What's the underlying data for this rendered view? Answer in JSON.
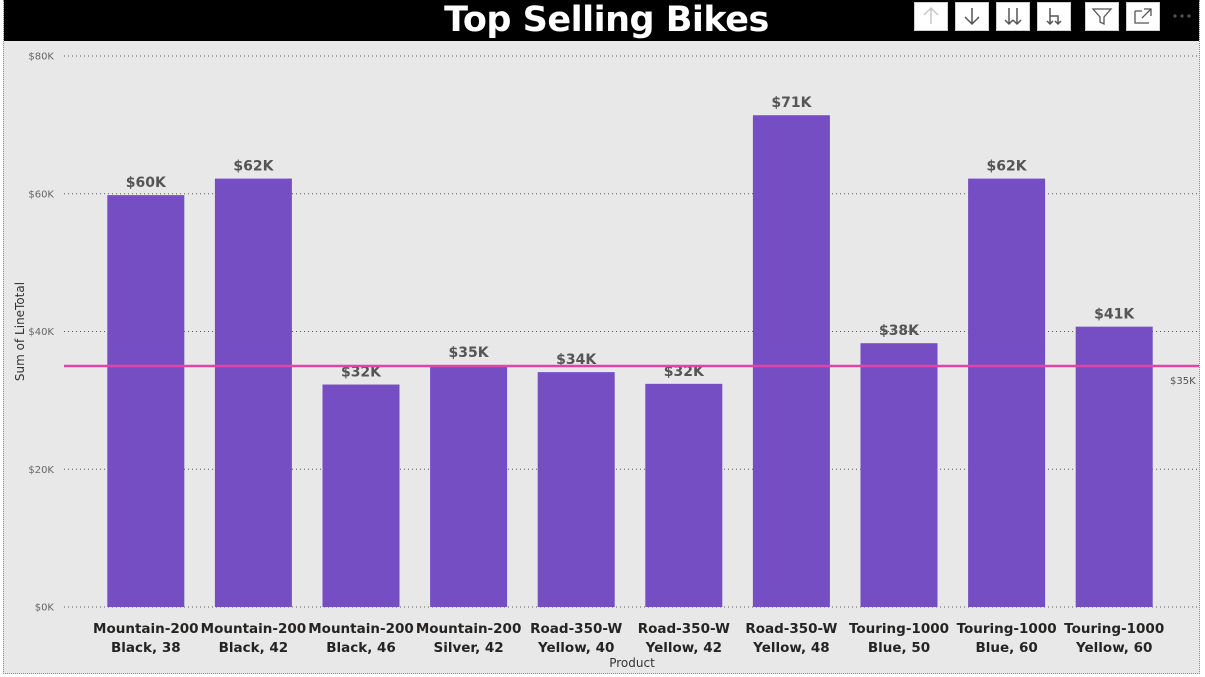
{
  "toolbar": {
    "icons": [
      "sort-ascending-icon",
      "drill-down-icon",
      "expand-all-icon",
      "expand-hierarchy-icon",
      "filter-icon",
      "focus-mode-icon",
      "more-options-icon"
    ]
  },
  "colors": {
    "bar": "#744ec2",
    "reference_line": "#e044a7",
    "background": "#e8e8e8",
    "title_bar": "#000000"
  },
  "chart_data": {
    "type": "bar",
    "title": "Top Selling Bikes",
    "xlabel": "Product",
    "ylabel": "Sum of LineTotal",
    "categories": [
      [
        "Mountain-200",
        "Black, 38"
      ],
      [
        "Mountain-200",
        "Black, 42"
      ],
      [
        "Mountain-200",
        "Black, 46"
      ],
      [
        "Mountain-200",
        "Silver, 42"
      ],
      [
        "Road-350-W",
        "Yellow, 40"
      ],
      [
        "Road-350-W",
        "Yellow, 42"
      ],
      [
        "Road-350-W",
        "Yellow, 48"
      ],
      [
        "Touring-1000",
        "Blue, 50"
      ],
      [
        "Touring-1000",
        "Blue, 60"
      ],
      [
        "Touring-1000",
        "Yellow, 60"
      ]
    ],
    "values": [
      59800,
      62200,
      32300,
      35100,
      34100,
      32400,
      71400,
      38300,
      62200,
      40700
    ],
    "data_labels": [
      "$60K",
      "$62K",
      "$32K",
      "$35K",
      "$34K",
      "$32K",
      "$71K",
      "$38K",
      "$62K",
      "$41K"
    ],
    "ylim": [
      0,
      80000
    ],
    "yticks": [
      0,
      20000,
      40000,
      60000,
      80000
    ],
    "ytick_labels": [
      "$0K",
      "$20K",
      "$40K",
      "$60K",
      "$80K"
    ],
    "reference_line": {
      "value": 35000,
      "label": "$35K"
    },
    "grid": true,
    "legend": "none"
  }
}
